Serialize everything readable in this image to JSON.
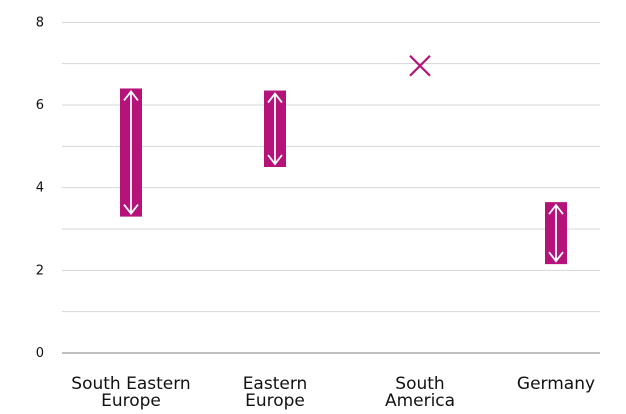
{
  "chart_data": {
    "type": "range",
    "categories": [
      [
        "South Eastern",
        "Europe"
      ],
      [
        "Eastern",
        "Europe"
      ],
      [
        "South",
        "America"
      ],
      [
        "Germany"
      ]
    ],
    "ranges": [
      {
        "low": 3.3,
        "high": 6.4
      },
      {
        "low": 4.5,
        "high": 6.35
      },
      null,
      {
        "low": 2.15,
        "high": 3.65
      }
    ],
    "points": [
      null,
      null,
      {
        "value": 6.95,
        "marker": "x"
      },
      null
    ],
    "y_ticks": [
      "0",
      "2",
      "4",
      "6",
      "8"
    ],
    "ylim": [
      0,
      8.25
    ],
    "gridline_step": 1,
    "grid": true,
    "color": "#b5127a",
    "arrow_color": "#ffffff",
    "grid_color": "#d6d6d6",
    "axis_color": "#999999"
  }
}
